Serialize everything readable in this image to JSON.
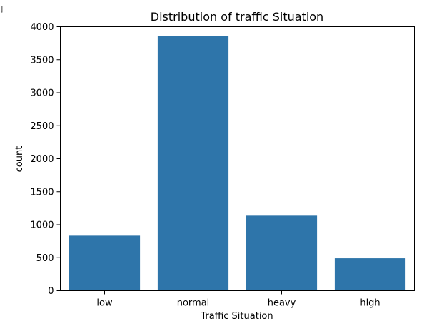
{
  "corner_mark": "]",
  "chart_data": {
    "type": "bar",
    "title": "Distribution of traffic Situation",
    "xlabel": "Traffic Situation",
    "ylabel": "count",
    "categories": [
      "low",
      "normal",
      "heavy",
      "high"
    ],
    "values": [
      834,
      3858,
      1137,
      491
    ],
    "ylim": [
      0,
      4000
    ],
    "yticks": [
      "0",
      "500",
      "1000",
      "1500",
      "2000",
      "2500",
      "3000",
      "3500",
      "4000"
    ],
    "grid": false,
    "bar_color": "#2e75aa"
  }
}
